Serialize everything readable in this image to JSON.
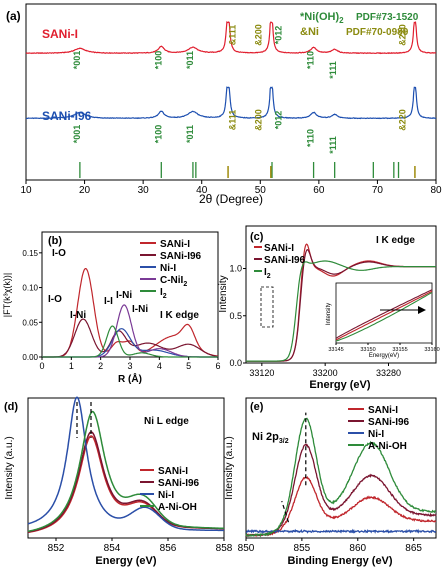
{
  "figure": {
    "panels": [
      {
        "id": "a",
        "label": "(a)",
        "type": "line",
        "xlabel": "2θ (Degree)",
        "ylabel": "",
        "xlim": [
          10,
          80
        ],
        "xticks": [
          "10",
          "20",
          "30",
          "40",
          "50",
          "60",
          "70",
          "80"
        ],
        "ticks_num": [
          10,
          20,
          30,
          40,
          50,
          60,
          70,
          80
        ],
        "series": [
          {
            "name": "SANi-I",
            "color": "#e01e2e",
            "offset": 0.72,
            "amp": 0.11,
            "peaks": [
              [
                19.2,
                0.25,
                1.2
              ],
              [
                33.1,
                0.35,
                0.6
              ],
              [
                38.5,
                0.3,
                1.0
              ],
              [
                44.5,
                3.0,
                0.25
              ],
              [
                51.9,
                2.5,
                0.25
              ],
              [
                59.1,
                0.3,
                0.6
              ],
              [
                62.7,
                0.2,
                0.6
              ],
              [
                76.4,
                2.2,
                0.25
              ]
            ]
          },
          {
            "name": "SANi-I96",
            "color": "#1d4fb0",
            "offset": 0.35,
            "amp": 0.11,
            "peaks": [
              [
                19.2,
                0.3,
                1.2
              ],
              [
                33.1,
                0.35,
                0.6
              ],
              [
                38.5,
                0.35,
                1.0
              ],
              [
                44.5,
                3.0,
                0.25
              ],
              [
                51.9,
                2.5,
                0.25
              ],
              [
                59.1,
                0.3,
                0.6
              ],
              [
                62.7,
                0.2,
                0.6
              ],
              [
                76.4,
                2.2,
                0.25
              ]
            ]
          }
        ],
        "labels_red": [
          "*001",
          "*100",
          "*011",
          "&111",
          "&200",
          "*012",
          "*110",
          "*111",
          "&220"
        ],
        "labels_blue": [
          "*001",
          "*100",
          "*011",
          "&111",
          "&200",
          "*012",
          "*110",
          "*111",
          "&220"
        ],
        "legend_ni_oh": "*Ni(OH)",
        "legend_ni_oh_sub": "2",
        "legend_ni": "&Ni",
        "pdf1": "PDF#73-1520",
        "pdf2": "PDF#70-0989",
        "ref_green": [
          19.2,
          33.1,
          38.5,
          39.0,
          52.0,
          59.1,
          62.7,
          69.3,
          72.8,
          73.6
        ],
        "ref_olive": [
          44.5,
          51.8,
          76.4
        ]
      },
      {
        "id": "b",
        "label": "(b)",
        "type": "line",
        "xlabel": "R (Å)",
        "ylabel": "|FT(k³χ(k))|",
        "xlim": [
          0,
          6
        ],
        "ylim": [
          0,
          0.18
        ],
        "xticks": [
          "0",
          "1",
          "2",
          "3",
          "4",
          "5",
          "6"
        ],
        "ticks_num": [
          0,
          1,
          2,
          3,
          4,
          5,
          6
        ],
        "yticks": [
          "0.00",
          "0.05",
          "0.10",
          "0.15"
        ],
        "yticks_num": [
          0,
          0.05,
          0.1,
          0.15
        ],
        "edge_label": "I K edge",
        "series": [
          {
            "name": "SANi-I",
            "color": "#c0262c"
          },
          {
            "name": "SANi-I96",
            "color": "#7a1530"
          },
          {
            "name": "Ni-I",
            "color": "#2b4fa8"
          },
          {
            "name": "C-NiI",
            "color": "#7a3a96"
          },
          {
            "name": "I",
            "color": "#2e8b3a"
          }
        ],
        "legend_sub_cni": "2",
        "legend_sub_i2": "2",
        "annotations": [
          "I-O",
          "I-O",
          "I-Ni",
          "I-I",
          "I-Ni",
          "I-Ni"
        ]
      },
      {
        "id": "c",
        "label": "(c)",
        "type": "line",
        "xlabel": "Energy (eV)",
        "ylabel": "Intensity",
        "xlim": [
          33100,
          33340
        ],
        "ylim": [
          0,
          1.45
        ],
        "xticks": [
          "33120",
          "33200",
          "33280"
        ],
        "ticks_num": [
          33120,
          33200,
          33280
        ],
        "yticks": [
          "0.0",
          "0.5",
          "1.0"
        ],
        "yticks_num": [
          0,
          0.5,
          1.0
        ],
        "edge_label": "I K edge",
        "series": [
          {
            "name": "SANi-I",
            "color": "#c0262c"
          },
          {
            "name": "SANi-I96",
            "color": "#7a1530"
          },
          {
            "name": "I",
            "color": "#2e8b3a"
          }
        ],
        "legend_sub_i2": "2",
        "inset": {
          "xlabel": "Energy(eV)",
          "ylabel": "Intensity",
          "xticks": [
            "33145",
            "33150",
            "33155",
            "33160"
          ],
          "ticks_num": [
            33145,
            33150,
            33155,
            33160
          ]
        }
      },
      {
        "id": "d",
        "label": "(d)",
        "type": "line",
        "xlabel": "Energy (eV)",
        "ylabel": "Intensity (a.u.)",
        "xlim": [
          851,
          858
        ],
        "xticks": [
          "852",
          "854",
          "856",
          "858"
        ],
        "ticks_num": [
          852,
          854,
          856,
          858
        ],
        "edge_label": "Ni L edge",
        "series": [
          {
            "name": "SANi-I",
            "color": "#c0262c",
            "peak": 853.25,
            "h": 0.74,
            "w": 0.55
          },
          {
            "name": "SANi-I96",
            "color": "#7a1530",
            "peak": 853.25,
            "h": 0.77,
            "w": 0.56
          },
          {
            "name": "Ni-I",
            "color": "#2b4fa8",
            "peak": 852.75,
            "h": 1.0,
            "w": 0.5
          },
          {
            "name": "A-Ni-OH",
            "color": "#2e8b3a",
            "peak": 853.3,
            "h": 0.92,
            "w": 0.55
          }
        ]
      },
      {
        "id": "e",
        "label": "(e)",
        "type": "line",
        "xlabel": "Binding Energy (eV)",
        "ylabel": "Intensity (a.u.)",
        "xlim": [
          850,
          867
        ],
        "xticks": [
          "850",
          "855",
          "860",
          "865"
        ],
        "ticks_num": [
          850,
          855,
          860,
          865
        ],
        "core_label": "Ni 2p",
        "core_sub": "3/2",
        "series": [
          {
            "name": "SANi-I",
            "color": "#c0262c",
            "h": 0.45,
            "sat": 0.18,
            "base": 0.12
          },
          {
            "name": "SANi-I96",
            "color": "#7a1530",
            "h": 0.72,
            "sat": 0.3,
            "base": 0.17
          },
          {
            "name": "Ni-I",
            "color": "#2b4fa8",
            "h": 0.0,
            "sat": 0.0,
            "base": 0.05
          },
          {
            "name": "A-Ni-OH",
            "color": "#2e8b3a",
            "h": 0.95,
            "sat": 0.52,
            "base": 0.2
          }
        ]
      }
    ]
  },
  "chart_data": [
    {
      "type": "line",
      "panel": "a",
      "title": "",
      "xlabel": "2θ (Degree)",
      "ylabel": "",
      "xlim": [
        10,
        80
      ],
      "series": [
        {
          "name": "SANi-I",
          "peaks_2theta": [
            19.2,
            33.1,
            38.5,
            44.5,
            51.9,
            59.1,
            62.7,
            76.4
          ]
        },
        {
          "name": "SANi-I96",
          "peaks_2theta": [
            19.2,
            33.1,
            38.5,
            44.5,
            51.9,
            59.1,
            62.7,
            76.4
          ]
        }
      ]
    },
    {
      "type": "line",
      "panel": "b",
      "xlabel": "R (Å)",
      "ylabel": "|FT(k³χ(k))|",
      "xlim": [
        0,
        6
      ],
      "ylim": [
        0,
        0.18
      ],
      "series": [
        {
          "name": "SANi-I",
          "x": [
            0,
            0.8,
            1.2,
            1.45,
            1.8,
            2.2,
            2.6,
            3.0,
            3.6,
            4.5,
            5.2,
            6.0
          ],
          "y": [
            0,
            0.03,
            0.12,
            0.155,
            0.08,
            0.01,
            0.02,
            0.03,
            0.02,
            0.03,
            0.03,
            0.01
          ]
        },
        {
          "name": "SANi-I96",
          "x": [
            0,
            0.8,
            1.2,
            1.4,
            1.8,
            2.2,
            2.6,
            3.0,
            3.6,
            4.5,
            5.2,
            6.0
          ],
          "y": [
            0,
            0.02,
            0.065,
            0.07,
            0.04,
            0.015,
            0.03,
            0.02,
            0.02,
            0.02,
            0.02,
            0.01
          ]
        },
        {
          "name": "Ni-I",
          "x": [
            0,
            1.5,
            2.3,
            2.7,
            3.2,
            4.0,
            6.0
          ],
          "y": [
            0,
            0.005,
            0.03,
            0.04,
            0.015,
            0.005,
            0.003
          ]
        },
        {
          "name": "C-NiI2",
          "x": [
            0,
            1.5,
            2.5,
            2.8,
            3.2,
            4.0,
            6.0
          ],
          "y": [
            0,
            0.005,
            0.06,
            0.075,
            0.03,
            0.008,
            0.003
          ]
        },
        {
          "name": "I2",
          "x": [
            0,
            1.5,
            2.2,
            2.4,
            2.8,
            3.5,
            6.0
          ],
          "y": [
            0,
            0.005,
            0.04,
            0.045,
            0.015,
            0.004,
            0.002
          ]
        }
      ]
    },
    {
      "type": "line",
      "panel": "c",
      "xlabel": "Energy (eV)",
      "ylabel": "Intensity",
      "xlim": [
        33100,
        33340
      ],
      "ylim": [
        0,
        1.45
      ],
      "series": [
        {
          "name": "SANi-I",
          "white_line_eV": 33175,
          "peak": 1.3
        },
        {
          "name": "SANi-I96",
          "white_line_eV": 33175,
          "peak": 1.22
        },
        {
          "name": "I2",
          "white_line_eV": 33170,
          "peak": 1.05
        }
      ]
    },
    {
      "type": "line",
      "panel": "d",
      "xlabel": "Energy (eV)",
      "ylabel": "Intensity (a.u.)",
      "xlim": [
        851,
        858
      ],
      "series": [
        {
          "name": "SANi-I",
          "peak_eV": 853.25
        },
        {
          "name": "SANi-I96",
          "peak_eV": 853.25
        },
        {
          "name": "Ni-I",
          "peak_eV": 852.75
        },
        {
          "name": "A-Ni-OH",
          "peak_eV": 853.3
        }
      ]
    },
    {
      "type": "line",
      "panel": "e",
      "xlabel": "Binding Energy (eV)",
      "ylabel": "Intensity (a.u.)",
      "xlim": [
        850,
        867
      ],
      "series": [
        {
          "name": "SANi-I",
          "peak_eV": 855.3
        },
        {
          "name": "SANi-I96",
          "peak_eV": 855.3
        },
        {
          "name": "Ni-I",
          "peak_eV": null
        },
        {
          "name": "A-Ni-OH",
          "peak_eV": 855.4
        }
      ]
    }
  ]
}
